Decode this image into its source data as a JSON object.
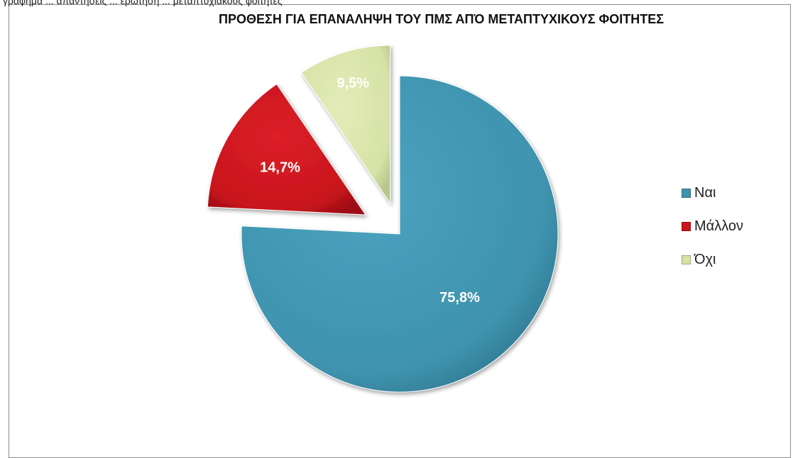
{
  "header_text": "γραφημα ... απαντησεις ... ερωτηση ... μεταπτυχιακους φοιτητες",
  "chart_data": {
    "type": "pie",
    "title": "ΠΡΟΘΕΣΗ ΓΙΑ ΕΠΑΝΑΛΗΨΗ ΤΟΥ ΠΜΣ ΑΠΌ ΜΕΤΑΠΤΥΧΙΚΟΥΣ ΦΟΙΤΗΤΕΣ",
    "exploded": true,
    "legend_position": "right",
    "slices": [
      {
        "label": "Ναι",
        "value": 75.8,
        "display": "75,8%",
        "color": "#3f93ae"
      },
      {
        "label": "Μάλλον",
        "value": 14.7,
        "display": "14,7%",
        "color": "#c8141c"
      },
      {
        "label": "Όχι",
        "value": 9.5,
        "display": "9,5%",
        "color": "#d6e2a6"
      }
    ]
  }
}
